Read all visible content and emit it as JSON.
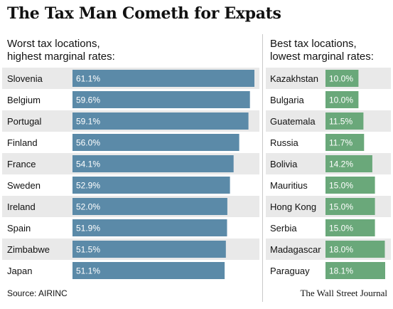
{
  "title": "The Tax Man Cometh for Expats",
  "source": "Source: AIRINC",
  "publisher": "The Wall Street Journal",
  "colors": {
    "worst_bar": "#5b8aa8",
    "best_bar": "#6aa87a",
    "row_alt": "#e9e9e9"
  },
  "chart_data": [
    {
      "type": "bar",
      "title": "Worst tax locations,",
      "subtitle": "highest marginal rates:",
      "orientation": "horizontal",
      "categories": [
        "Slovenia",
        "Belgium",
        "Portugal",
        "Finland",
        "France",
        "Sweden",
        "Ireland",
        "Spain",
        "Zimbabwe",
        "Japan"
      ],
      "values": [
        61.1,
        59.6,
        59.1,
        56.0,
        54.1,
        52.9,
        52.0,
        51.9,
        51.5,
        51.1
      ],
      "labels": [
        "61.1%",
        "59.6%",
        "59.1%",
        "56.0%",
        "54.1%",
        "52.9%",
        "52.0%",
        "51.9%",
        "51.5%",
        "51.1%"
      ],
      "color": "#5b8aa8"
    },
    {
      "type": "bar",
      "title": "Best tax locations,",
      "subtitle": "lowest marginal rates:",
      "orientation": "horizontal",
      "categories": [
        "Kazakhstan",
        "Bulgaria",
        "Guatemala",
        "Russia",
        "Bolivia",
        "Mauritius",
        "Hong Kong",
        "Serbia",
        "Madagascar",
        "Paraguay"
      ],
      "values": [
        10.0,
        10.0,
        11.5,
        11.7,
        14.2,
        15.0,
        15.0,
        15.0,
        18.0,
        18.1
      ],
      "labels": [
        "10.0%",
        "10.0%",
        "11.5%",
        "11.7%",
        "14.2%",
        "15.0%",
        "15.0%",
        "15.0%",
        "18.0%",
        "18.1%"
      ],
      "color": "#6aa87a"
    }
  ]
}
